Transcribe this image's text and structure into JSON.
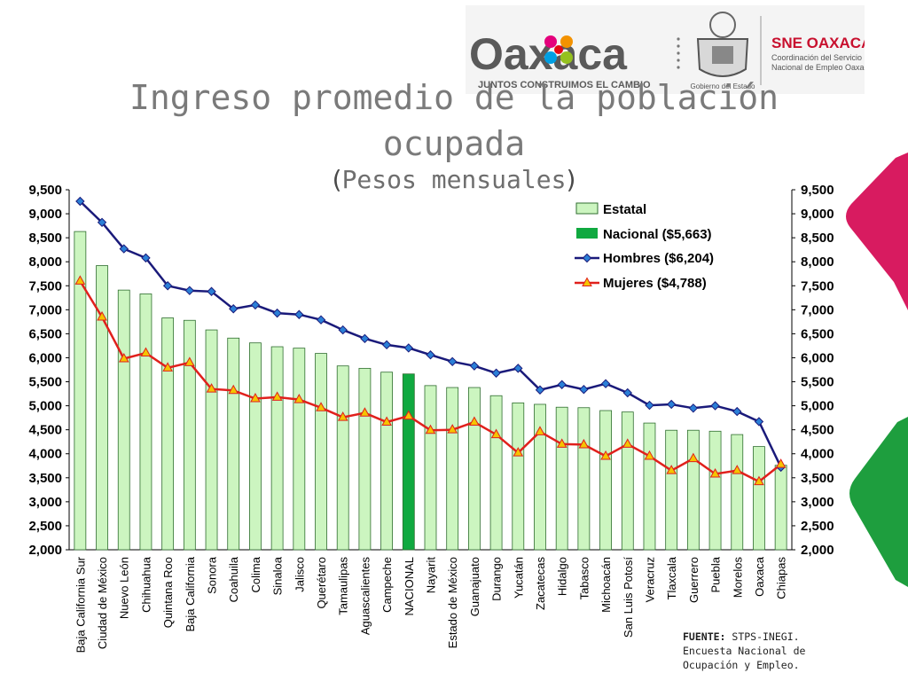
{
  "header": {
    "brand_name": "Oaxaca",
    "brand_slogan": "JUNTOS CONSTRUIMOS EL CAMBIO",
    "gov_label": "Gobierno del Estado",
    "sne_title": "SNE OAXACA",
    "sne_line1": "Coordinación del Servicio",
    "sne_line2": "Nacional de Empleo Oaxaca"
  },
  "title_line1": "Ingreso promedio de la población",
  "title_line2": "ocupada",
  "subtitle_open": "(",
  "subtitle_text": "Pesos mensuales",
  "subtitle_close": ")",
  "source": {
    "label": "FUENTE:",
    "line1": " STPS-INEGI.",
    "line2": "Encuesta Nacional de",
    "line3": "Ocupación y Empleo."
  },
  "colors": {
    "estatal_fill": "#ccf5c0",
    "estatal_stroke": "#2f6d2f",
    "nacional_fill": "#10a940",
    "hombres_line": "#1a1a7a",
    "hombres_marker": "#2b7fd6",
    "mujeres_line": "#e0201c",
    "mujeres_marker": "#f5c400",
    "deco_pink": "#d81b60",
    "deco_green": "#1e9e3e"
  },
  "chart_data": {
    "type": "bar",
    "categories": [
      "Baja California Sur",
      "Ciudad de México",
      "Nuevo León",
      "Chihuahua",
      "Quintana Roo",
      "Baja California",
      "Sonora",
      "Coahuila",
      "Colima",
      "Sinaloa",
      "Jalisco",
      "Querétaro",
      "Tamaulipas",
      "Aguascalientes",
      "Campeche",
      "NACIONAL",
      "Nayarit",
      "Estado de México",
      "Guanajuato",
      "Durango",
      "Yucatán",
      "Zacatecas",
      "Hidalgo",
      "Tabasco",
      "Michoacán",
      "San Luis Potosí",
      "Veracruz",
      "Tlaxcala",
      "Guerrero",
      "Puebla",
      "Morelos",
      "Oaxaca",
      "Chiapas"
    ],
    "highlight_category": "NACIONAL",
    "series": [
      {
        "name": "Estatal",
        "type": "bar",
        "values": [
          8630,
          7920,
          7410,
          7330,
          6830,
          6780,
          6580,
          6410,
          6310,
          6230,
          6200,
          6090,
          5830,
          5780,
          5700,
          5663,
          5420,
          5380,
          5380,
          5210,
          5060,
          5030,
          4970,
          4960,
          4900,
          4870,
          4640,
          4490,
          4490,
          4470,
          4400,
          4150,
          3760
        ]
      },
      {
        "name": "Nacional ($5,663)",
        "type": "bar"
      },
      {
        "name": "Hombres ($6,204)",
        "type": "line",
        "values": [
          9260,
          8820,
          8270,
          8080,
          7500,
          7400,
          7380,
          7020,
          7100,
          6930,
          6900,
          6790,
          6580,
          6400,
          6270,
          6204,
          6060,
          5920,
          5830,
          5680,
          5780,
          5330,
          5440,
          5340,
          5460,
          5270,
          5010,
          5030,
          4950,
          5000,
          4880,
          4670,
          3720
        ]
      },
      {
        "name": "Mujeres ($4,788)",
        "type": "line",
        "values": [
          7600,
          6850,
          5980,
          6100,
          5790,
          5900,
          5350,
          5320,
          5150,
          5180,
          5130,
          4960,
          4760,
          4850,
          4660,
          4788,
          4490,
          4500,
          4660,
          4400,
          4020,
          4460,
          4200,
          4190,
          3950,
          4200,
          3950,
          3650,
          3900,
          3580,
          3650,
          3420,
          3780
        ]
      }
    ],
    "y_ticks": [
      "2,000",
      "2,500",
      "3,000",
      "3,500",
      "4,000",
      "4,500",
      "5,000",
      "5,500",
      "6,000",
      "6,500",
      "7,000",
      "7,500",
      "8,000",
      "8,500",
      "9,000",
      "9,500"
    ],
    "ylim": [
      2000,
      9500
    ],
    "xlabel": "",
    "ylabel": "",
    "legend_position": "top-right",
    "grid": false,
    "dual_axis": true
  }
}
